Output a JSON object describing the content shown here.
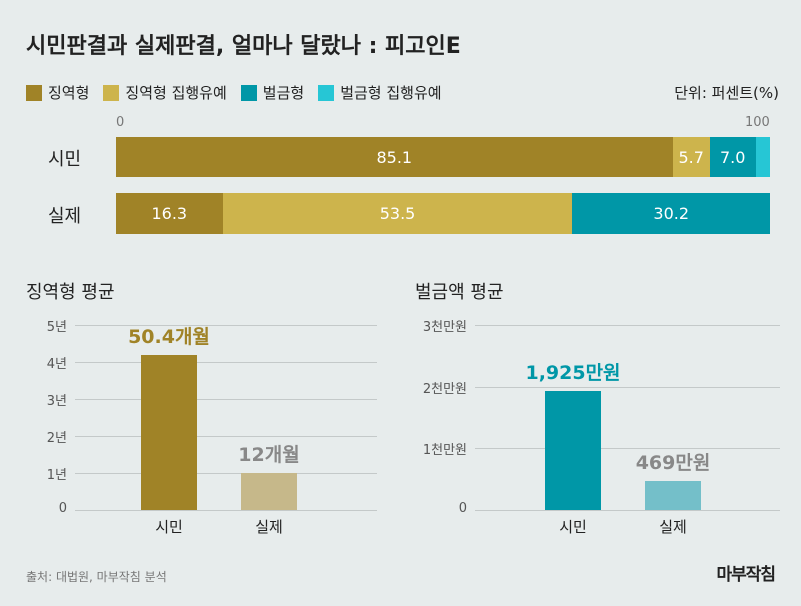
{
  "title": "시민판결과 실제판결, 얼마나 달랐나 : 피고인E",
  "unit": "단위: 퍼센트(%)",
  "source": "출처: 대법원, 마부작침 분석",
  "logo": "마부작침",
  "colors": {
    "prison": "#a08327",
    "suspended": "#cdb44c",
    "fine": "#0097a7",
    "fine_suspended": "#26c6d5",
    "actual_prison_light": "#c6b88a",
    "actual_fine_light": "#74bfc9"
  },
  "chart_data": [
    {
      "type": "bar",
      "subtype": "stacked-horizontal",
      "xlim": [
        0,
        100
      ],
      "ticks": [
        "0",
        "100"
      ],
      "legend": [
        "징역형",
        "징역형 집행유예",
        "벌금형",
        "벌금형 집행유예"
      ],
      "categories": [
        "시민",
        "실제"
      ],
      "series": [
        {
          "name": "징역형",
          "values": [
            85.1,
            16.3
          ]
        },
        {
          "name": "징역형 집행유예",
          "values": [
            5.7,
            53.5
          ]
        },
        {
          "name": "벌금형",
          "values": [
            7.0,
            30.2
          ]
        },
        {
          "name": "벌금형 집행유예",
          "values": [
            2.2,
            0
          ]
        }
      ],
      "labels": [
        [
          "85.1",
          "5.7",
          "7.0",
          ""
        ],
        [
          "16.3",
          "53.5",
          "30.2",
          ""
        ]
      ]
    },
    {
      "type": "bar",
      "title": "징역형 평균",
      "categories": [
        "시민",
        "실제"
      ],
      "values": [
        4.2,
        1.0
      ],
      "value_labels": [
        "50.4개월",
        "12개월"
      ],
      "ylim": [
        0,
        5
      ],
      "yticks": [
        "0",
        "1년",
        "2년",
        "3년",
        "4년",
        "5년"
      ]
    },
    {
      "type": "bar",
      "title": "벌금액 평균",
      "categories": [
        "시민",
        "실제"
      ],
      "values": [
        1925,
        469
      ],
      "value_labels": [
        "1,925만원",
        "469만원"
      ],
      "ylim": [
        0,
        3000
      ],
      "yticks": [
        "0",
        "1천만원",
        "2천만원",
        "3천만원"
      ]
    }
  ]
}
